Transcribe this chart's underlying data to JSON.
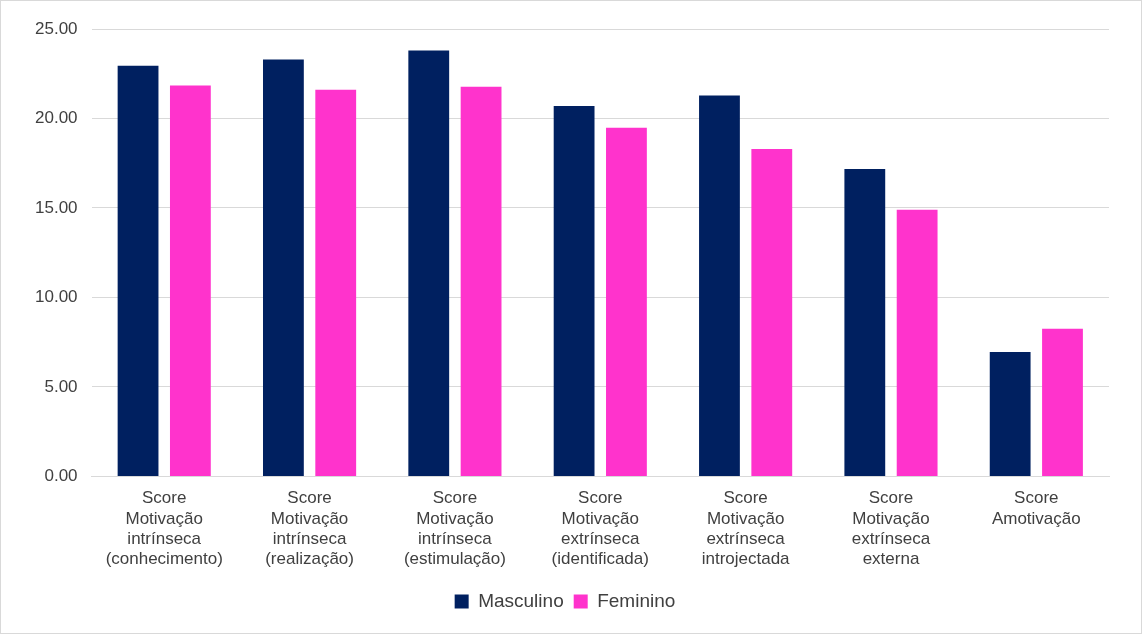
{
  "chart_data": {
    "type": "bar",
    "categories": [
      "Score Motivação intrínseca (conhecimento)",
      "Score Motivação intrínseca (realização)",
      "Score Motivação intrínseca (estimulação)",
      "Score Motivação extrínseca (identificada)",
      "Score Motivação extrínseca introjectada",
      "Score Motivação extrínseca externa",
      "Score Amotivação"
    ],
    "series": [
      {
        "name": "Masculino",
        "color": "#002060",
        "values": [
          22.95,
          23.3,
          23.8,
          20.7,
          21.28,
          17.18,
          6.95
        ]
      },
      {
        "name": "Feminino",
        "color": "#ff33cc",
        "values": [
          21.84,
          21.6,
          21.77,
          19.48,
          18.3,
          14.9,
          8.25
        ]
      }
    ],
    "ylim": [
      0,
      25
    ],
    "yticks": [
      {
        "value": 0,
        "label": "0.00"
      },
      {
        "value": 5,
        "label": "5.00"
      },
      {
        "value": 10,
        "label": "10.00"
      },
      {
        "value": 15,
        "label": "15.00"
      },
      {
        "value": 20,
        "label": "20.00"
      },
      {
        "value": 25,
        "label": "25.00"
      }
    ],
    "grid": "y",
    "legend": "bottom"
  }
}
